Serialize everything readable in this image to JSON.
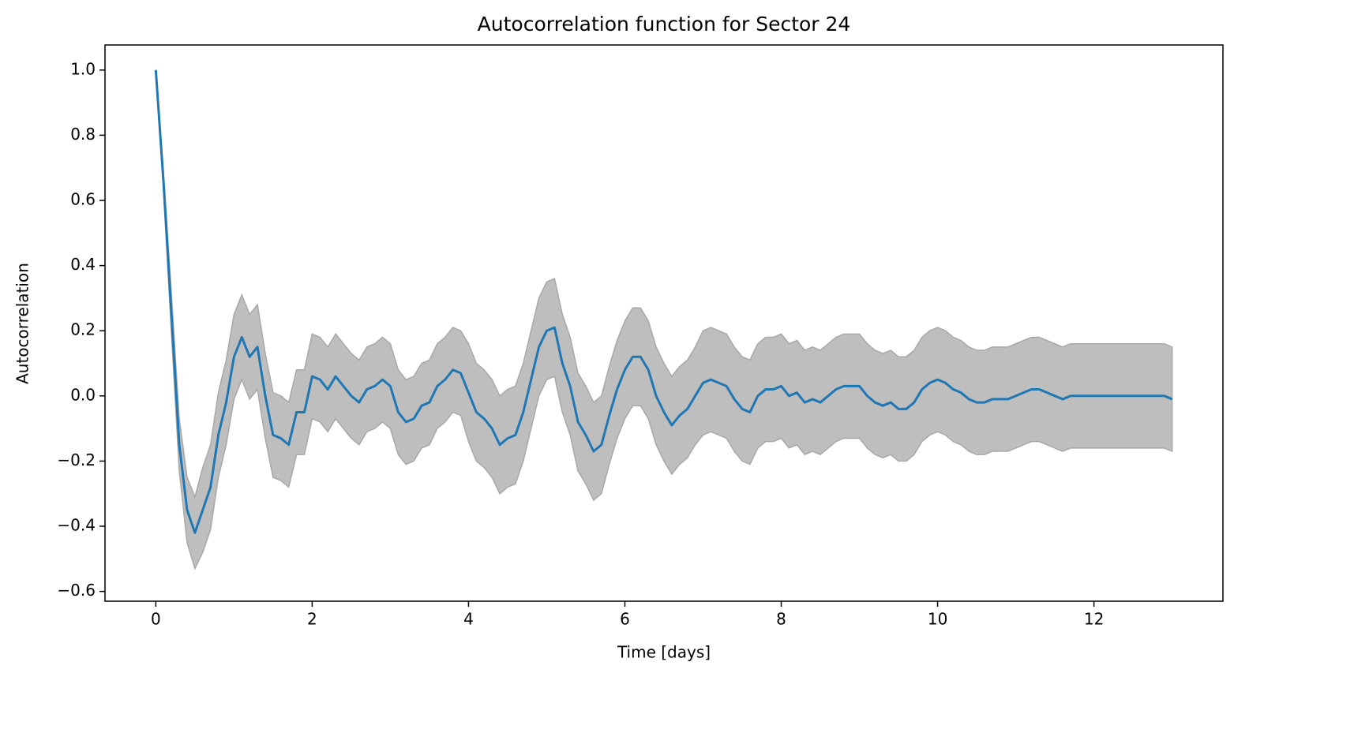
{
  "chart_data": {
    "type": "line",
    "title": "Autocorrelation function for Sector 24",
    "x_label": "Time [days]",
    "y_label": "Autocorrelation",
    "xlim": [
      -0.65,
      13.65
    ],
    "ylim": [
      -0.63,
      1.077
    ],
    "xticks": [
      0,
      2,
      4,
      6,
      8,
      10,
      12
    ],
    "yticks": [
      {
        "value": -0.6,
        "label": "−0.6"
      },
      {
        "value": -0.4,
        "label": "−0.4"
      },
      {
        "value": -0.2,
        "label": "−0.2"
      },
      {
        "value": 0,
        "label": "0.0"
      },
      0.2,
      0.4,
      0.6,
      0.8,
      {
        "value": 1,
        "label": "1.0"
      }
    ],
    "grid": false,
    "x": [
      0,
      0.1,
      0.2,
      0.3,
      0.4,
      0.5,
      0.6,
      0.7,
      0.8,
      0.9,
      1.0,
      1.1,
      1.2,
      1.3,
      1.4,
      1.5,
      1.6,
      1.7,
      1.8,
      1.9,
      2.0,
      2.1,
      2.2,
      2.3,
      2.4,
      2.5,
      2.6,
      2.7,
      2.8,
      2.9,
      3.0,
      3.1,
      3.2,
      3.3,
      3.4,
      3.5,
      3.6,
      3.7,
      3.8,
      3.9,
      4.0,
      4.1,
      4.2,
      4.3,
      4.4,
      4.5,
      4.6,
      4.7,
      4.8,
      4.9,
      5.0,
      5.1,
      5.2,
      5.3,
      5.4,
      5.5,
      5.6,
      5.7,
      5.8,
      5.9,
      6.0,
      6.1,
      6.2,
      6.3,
      6.4,
      6.5,
      6.6,
      6.7,
      6.8,
      6.9,
      7.0,
      7.1,
      7.2,
      7.3,
      7.4,
      7.5,
      7.6,
      7.7,
      7.8,
      7.9,
      8.0,
      8.1,
      8.2,
      8.3,
      8.4,
      8.5,
      8.6,
      8.7,
      8.8,
      8.9,
      9.0,
      9.1,
      9.2,
      9.3,
      9.4,
      9.5,
      9.6,
      9.7,
      9.8,
      9.9,
      10.0,
      10.1,
      10.2,
      10.3,
      10.4,
      10.5,
      10.6,
      10.7,
      10.8,
      10.9,
      11.0,
      11.1,
      11.2,
      11.3,
      11.4,
      11.5,
      11.6,
      11.7,
      11.8,
      11.9,
      12.0,
      12.1,
      12.2,
      12.3,
      12.4,
      12.5,
      12.6,
      12.7,
      12.8,
      12.9,
      13.0
    ],
    "line": {
      "color": "#1f77b4",
      "values": [
        1.0,
        0.65,
        0.25,
        -0.15,
        -0.35,
        -0.42,
        -0.35,
        -0.28,
        -0.12,
        -0.02,
        0.12,
        0.18,
        0.12,
        0.15,
        0,
        -0.12,
        -0.13,
        -0.15,
        -0.05,
        -0.05,
        0.06,
        0.05,
        0.02,
        0.06,
        0.03,
        0,
        -0.02,
        0.02,
        0.03,
        0.05,
        0.03,
        -0.05,
        -0.08,
        -0.07,
        -0.03,
        -0.02,
        0.03,
        0.05,
        0.08,
        0.07,
        0.01,
        -0.05,
        -0.07,
        -0.1,
        -0.15,
        -0.13,
        -0.12,
        -0.05,
        0.05,
        0.15,
        0.2,
        0.21,
        0.1,
        0.03,
        -0.08,
        -0.12,
        -0.17,
        -0.15,
        -0.06,
        0.02,
        0.08,
        0.12,
        0.12,
        0.08,
        0,
        -0.05,
        -0.09,
        -0.06,
        -0.04,
        0,
        0.04,
        0.05,
        0.04,
        0.03,
        -0.01,
        -0.04,
        -0.05,
        0,
        0.02,
        0.02,
        0.03,
        0,
        0.01,
        -0.02,
        -0.01,
        -0.02,
        0,
        0.02,
        0.03,
        0.03,
        0.03,
        0,
        -0.02,
        -0.03,
        -0.02,
        -0.04,
        -0.04,
        -0.02,
        0.02,
        0.04,
        0.05,
        0.04,
        0.02,
        0.01,
        -0.01,
        -0.02,
        -0.02,
        -0.01,
        -0.01,
        -0.01,
        0,
        0.01,
        0.02,
        0.02,
        0.01,
        0,
        -0.01,
        0,
        0,
        0,
        0,
        0,
        0,
        0,
        0,
        0,
        0,
        0,
        0,
        0,
        -0.01
      ]
    },
    "band": {
      "color": "#bebebe",
      "edge_color": "#a8a8a8",
      "upper": [
        1.0,
        0.68,
        0.31,
        -0.07,
        -0.25,
        -0.31,
        -0.22,
        -0.15,
        0.01,
        0.11,
        0.25,
        0.31,
        0.25,
        0.28,
        0.13,
        0.01,
        0,
        -0.02,
        0.08,
        0.08,
        0.19,
        0.18,
        0.15,
        0.19,
        0.16,
        0.13,
        0.11,
        0.15,
        0.16,
        0.18,
        0.16,
        0.08,
        0.05,
        0.06,
        0.1,
        0.11,
        0.16,
        0.18,
        0.21,
        0.2,
        0.16,
        0.1,
        0.08,
        0.05,
        0,
        0.02,
        0.03,
        0.1,
        0.2,
        0.3,
        0.35,
        0.36,
        0.25,
        0.18,
        0.07,
        0.03,
        -0.02,
        0,
        0.09,
        0.17,
        0.23,
        0.27,
        0.27,
        0.23,
        0.15,
        0.1,
        0.06,
        0.09,
        0.11,
        0.15,
        0.2,
        0.21,
        0.2,
        0.19,
        0.15,
        0.12,
        0.11,
        0.16,
        0.18,
        0.18,
        0.19,
        0.16,
        0.17,
        0.14,
        0.15,
        0.14,
        0.16,
        0.18,
        0.19,
        0.19,
        0.19,
        0.16,
        0.14,
        0.13,
        0.14,
        0.12,
        0.12,
        0.14,
        0.18,
        0.2,
        0.21,
        0.2,
        0.18,
        0.17,
        0.15,
        0.14,
        0.14,
        0.15,
        0.15,
        0.15,
        0.16,
        0.17,
        0.18,
        0.18,
        0.17,
        0.16,
        0.15,
        0.16,
        0.16,
        0.16,
        0.16,
        0.16,
        0.16,
        0.16,
        0.16,
        0.16,
        0.16,
        0.16,
        0.16,
        0.16,
        0.15
      ],
      "lower": [
        1.0,
        0.62,
        0.19,
        -0.23,
        -0.45,
        -0.53,
        -0.48,
        -0.41,
        -0.25,
        -0.15,
        -0.01,
        0.05,
        -0.01,
        0.02,
        -0.13,
        -0.25,
        -0.26,
        -0.28,
        -0.18,
        -0.18,
        -0.07,
        -0.08,
        -0.11,
        -0.07,
        -0.1,
        -0.13,
        -0.15,
        -0.11,
        -0.1,
        -0.08,
        -0.1,
        -0.18,
        -0.21,
        -0.2,
        -0.16,
        -0.15,
        -0.1,
        -0.08,
        -0.05,
        -0.06,
        -0.14,
        -0.2,
        -0.22,
        -0.25,
        -0.3,
        -0.28,
        -0.27,
        -0.2,
        -0.1,
        0,
        0.05,
        0.06,
        -0.05,
        -0.12,
        -0.23,
        -0.27,
        -0.32,
        -0.3,
        -0.21,
        -0.13,
        -0.07,
        -0.03,
        -0.03,
        -0.07,
        -0.15,
        -0.2,
        -0.24,
        -0.21,
        -0.19,
        -0.15,
        -0.12,
        -0.11,
        -0.12,
        -0.13,
        -0.17,
        -0.2,
        -0.21,
        -0.16,
        -0.14,
        -0.14,
        -0.13,
        -0.16,
        -0.15,
        -0.18,
        -0.17,
        -0.18,
        -0.16,
        -0.14,
        -0.13,
        -0.13,
        -0.13,
        -0.16,
        -0.18,
        -0.19,
        -0.18,
        -0.2,
        -0.2,
        -0.18,
        -0.14,
        -0.12,
        -0.11,
        -0.12,
        -0.14,
        -0.15,
        -0.17,
        -0.18,
        -0.18,
        -0.17,
        -0.17,
        -0.17,
        -0.16,
        -0.15,
        -0.14,
        -0.14,
        -0.15,
        -0.16,
        -0.17,
        -0.16,
        -0.16,
        -0.16,
        -0.16,
        -0.16,
        -0.16,
        -0.16,
        -0.16,
        -0.16,
        -0.16,
        -0.16,
        -0.16,
        -0.16,
        -0.17
      ]
    }
  }
}
